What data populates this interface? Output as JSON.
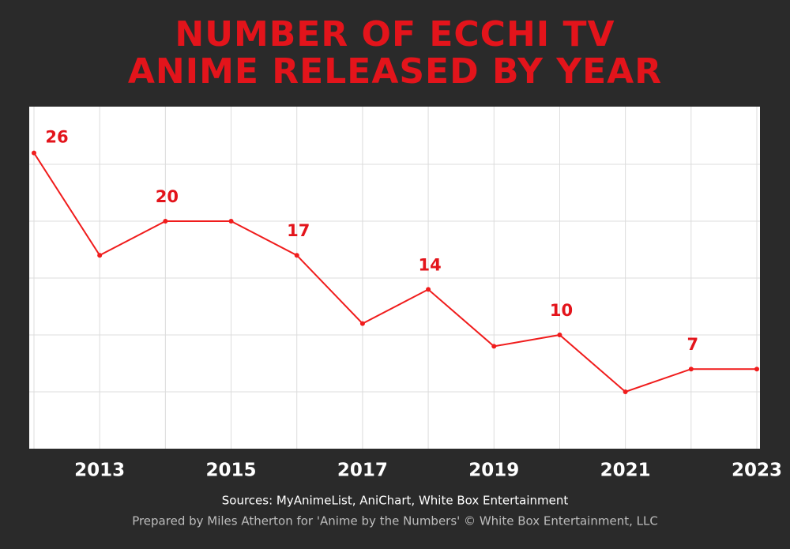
{
  "chart_data": {
    "type": "line",
    "title": [
      "NUMBER OF ECCHI TV",
      "ANIME RELEASED BY YEAR"
    ],
    "x": [
      2012,
      2013,
      2014,
      2015,
      2016,
      2017,
      2018,
      2019,
      2020,
      2021,
      2022,
      2023
    ],
    "series": [
      {
        "color": "#f01c1c",
        "values": [
          26,
          17,
          20,
          20,
          17,
          11,
          14,
          9,
          10,
          5,
          7,
          7
        ],
        "value_labels": [
          "26",
          null,
          "20",
          null,
          "17",
          null,
          "14",
          null,
          "10",
          null,
          "7",
          null
        ]
      }
    ],
    "xlim": [
      2012,
      2023
    ],
    "xticks": [
      2013,
      2015,
      2017,
      2019,
      2021,
      2023
    ],
    "ylim": [
      0,
      30
    ],
    "ygrid": [
      5,
      10,
      15,
      20,
      25
    ],
    "grid": true,
    "source": "Sources: MyAnimeList, AniChart, White Box Entertainment",
    "credit": "Prepared by Miles Atherton for 'Anime by the Numbers' © White Box Entertainment, LLC"
  }
}
